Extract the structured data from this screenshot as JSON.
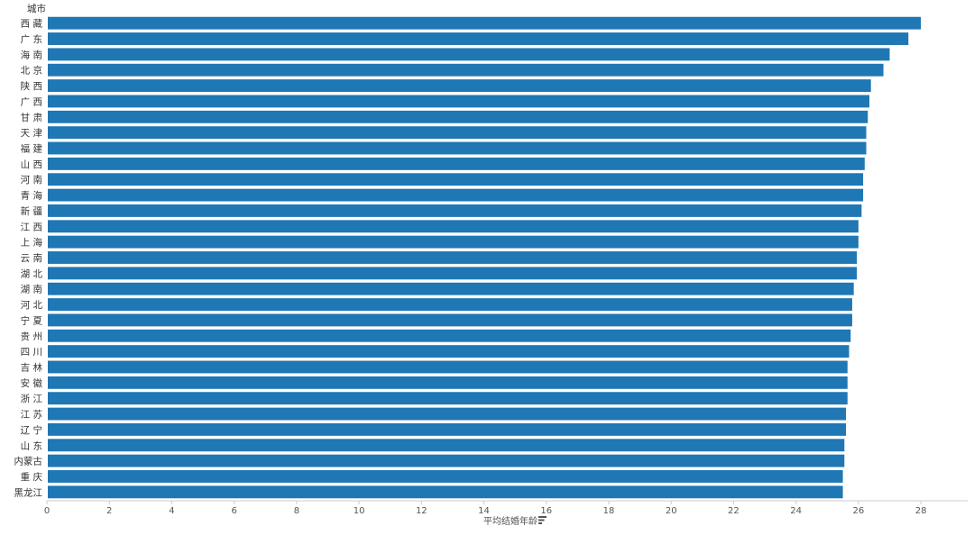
{
  "chart_data": {
    "type": "bar",
    "orientation": "horizontal",
    "category_header": "城市",
    "xlabel": "平均结婚年龄",
    "sort_icon": "sort-descending-icon",
    "bar_color": "#1f77b4",
    "xlim": [
      0,
      29.5
    ],
    "xticks": [
      0,
      2,
      4,
      6,
      8,
      10,
      12,
      14,
      16,
      18,
      20,
      22,
      24,
      26,
      28
    ],
    "categories": [
      "西 藏",
      "广 东",
      "海 南",
      "北 京",
      "陕 西",
      "广 西",
      "甘 肃",
      "天 津",
      "福 建",
      "山 西",
      "河 南",
      "青 海",
      "新 疆",
      "江 西",
      "上 海",
      "云 南",
      "湖 北",
      "湖 南",
      "河 北",
      "宁 夏",
      "贵 州",
      "四 川",
      "吉 林",
      "安 徽",
      "浙 江",
      "江 苏",
      "辽 宁",
      "山 东",
      "内蒙古",
      "重 庆",
      "黑龙江"
    ],
    "values": [
      28.0,
      27.6,
      27.0,
      26.8,
      26.4,
      26.35,
      26.3,
      26.25,
      26.25,
      26.2,
      26.15,
      26.15,
      26.1,
      26.0,
      26.0,
      25.95,
      25.95,
      25.85,
      25.8,
      25.8,
      25.75,
      25.7,
      25.65,
      25.65,
      25.65,
      25.6,
      25.6,
      25.55,
      25.55,
      25.5,
      25.5
    ],
    "grid": false,
    "legend": "none"
  }
}
